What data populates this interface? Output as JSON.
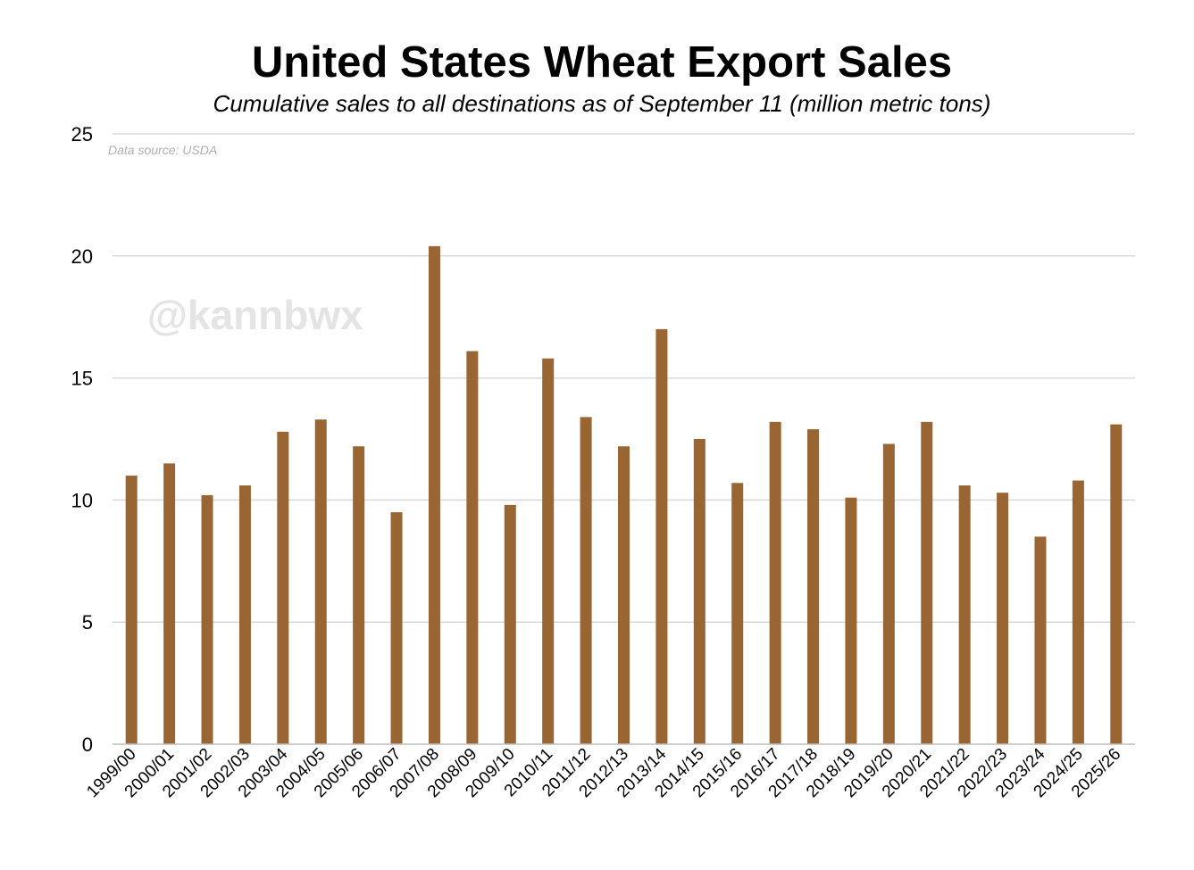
{
  "colors": {
    "bar": "#996633",
    "grid": "#d9d9d9",
    "axis": "#bfbfbf",
    "watermark": "#e4e4e4",
    "source": "#b0b0b0"
  },
  "chart_data": {
    "type": "bar",
    "title": "United States Wheat Export Sales",
    "subtitle": "Cumulative sales to all destinations as of September 11 (million metric tons)",
    "source_note": "Data source: USDA",
    "watermark": "@kannbwx",
    "xlabel": "",
    "ylabel": "",
    "ylim": [
      0,
      25
    ],
    "yticks": [
      0,
      5,
      10,
      15,
      20,
      25
    ],
    "grid": true,
    "legend": "none",
    "categories": [
      "1999/00",
      "2000/01",
      "2001/02",
      "2002/03",
      "2003/04",
      "2004/05",
      "2005/06",
      "2006/07",
      "2007/08",
      "2008/09",
      "2009/10",
      "2010/11",
      "2011/12",
      "2012/13",
      "2013/14",
      "2014/15",
      "2015/16",
      "2016/17",
      "2017/18",
      "2018/19",
      "2019/20",
      "2020/21",
      "2021/22",
      "2022/23",
      "2023/24",
      "2024/25",
      "2025/26"
    ],
    "series": [
      {
        "name": "Cumulative sales",
        "values": [
          11.0,
          11.5,
          10.2,
          10.6,
          12.8,
          13.3,
          12.2,
          9.5,
          20.4,
          16.1,
          9.8,
          15.8,
          13.4,
          12.2,
          17.0,
          12.5,
          10.7,
          13.2,
          12.9,
          10.1,
          12.3,
          13.2,
          10.6,
          10.3,
          8.5,
          10.8,
          13.1
        ]
      }
    ]
  }
}
